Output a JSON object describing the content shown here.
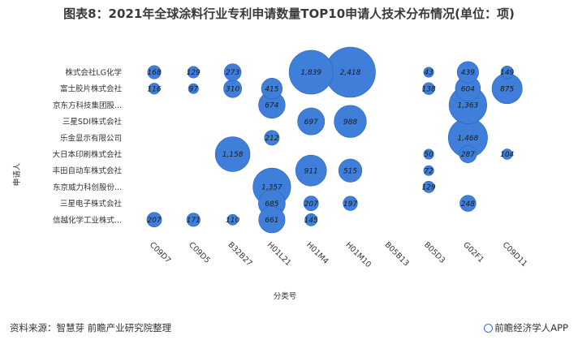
{
  "title": "图表8：2021年全球涂料行业专利申请数量TOP10申请人技术分布情况(单位：项)",
  "source": "资料来源：智慧芽 前瞻产业研究院整理",
  "brand": "前瞻经济学人APP",
  "colors": {
    "bubble": "#3f7fd9",
    "bubble_edge": "#2a64b8",
    "text": "#333333"
  },
  "chart_data": {
    "type": "bubble",
    "xlabel": "分类号",
    "ylabel": "申请人",
    "categories_x": [
      "C09D7",
      "C09D5",
      "B32B27",
      "H01L21",
      "H01M4",
      "H01M10",
      "B05B13",
      "B05D3",
      "G02F1",
      "C09D11"
    ],
    "categories_y": [
      "株式会社LG化学",
      "富士胶片株式会社",
      "京东方科技集团股...",
      "三星SDI株式会社",
      "乐金显示有限公司",
      "大日本印刷株式会社",
      "丰田自动车株式会社",
      "东京威力科创股份...",
      "三星电子株式会社",
      "信越化学工业株式..."
    ],
    "points": [
      {
        "x": "C09D7",
        "y": "株式会社LG化学",
        "value": 168,
        "label": "168"
      },
      {
        "x": "C09D5",
        "y": "株式会社LG化学",
        "value": 129,
        "label": "129"
      },
      {
        "x": "B32B27",
        "y": "株式会社LG化学",
        "value": 273,
        "label": "273"
      },
      {
        "x": "H01M4",
        "y": "株式会社LG化学",
        "value": 1839,
        "label": "1,839"
      },
      {
        "x": "H01M10",
        "y": "株式会社LG化学",
        "value": 2418,
        "label": "2,418"
      },
      {
        "x": "B05D3",
        "y": "株式会社LG化学",
        "value": 43,
        "label": "43"
      },
      {
        "x": "G02F1",
        "y": "株式会社LG化学",
        "value": 439,
        "label": "439"
      },
      {
        "x": "C09D11",
        "y": "株式会社LG化学",
        "value": 149,
        "label": "149"
      },
      {
        "x": "C09D7",
        "y": "富士胶片株式会社",
        "value": 116,
        "label": "116"
      },
      {
        "x": "C09D5",
        "y": "富士胶片株式会社",
        "value": 97,
        "label": "97"
      },
      {
        "x": "B32B27",
        "y": "富士胶片株式会社",
        "value": 310,
        "label": "310"
      },
      {
        "x": "H01L21",
        "y": "富士胶片株式会社",
        "value": 415,
        "label": "415"
      },
      {
        "x": "B05D3",
        "y": "富士胶片株式会社",
        "value": 138,
        "label": "138"
      },
      {
        "x": "G02F1",
        "y": "富士胶片株式会社",
        "value": 604,
        "label": "604"
      },
      {
        "x": "C09D11",
        "y": "富士胶片株式会社",
        "value": 875,
        "label": "875"
      },
      {
        "x": "H01L21",
        "y": "京东方科技集团股...",
        "value": 674,
        "label": "674"
      },
      {
        "x": "G02F1",
        "y": "京东方科技集团股...",
        "value": 1363,
        "label": "1,363"
      },
      {
        "x": "H01M4",
        "y": "三星SDI株式会社",
        "value": 697,
        "label": "697"
      },
      {
        "x": "H01M10",
        "y": "三星SDI株式会社",
        "value": 988,
        "label": "988"
      },
      {
        "x": "H01L21",
        "y": "乐金显示有限公司",
        "value": 212,
        "label": "212"
      },
      {
        "x": "G02F1",
        "y": "乐金显示有限公司",
        "value": 1468,
        "label": "1,468"
      },
      {
        "x": "B32B27",
        "y": "大日本印刷株式会社",
        "value": 1158,
        "label": "1,158"
      },
      {
        "x": "B05D3",
        "y": "大日本印刷株式会社",
        "value": 50,
        "label": "50"
      },
      {
        "x": "G02F1",
        "y": "大日本印刷株式会社",
        "value": 287,
        "label": "287"
      },
      {
        "x": "C09D11",
        "y": "大日本印刷株式会社",
        "value": 104,
        "label": "104"
      },
      {
        "x": "H01M4",
        "y": "丰田自动车株式会社",
        "value": 911,
        "label": "911"
      },
      {
        "x": "H01M10",
        "y": "丰田自动车株式会社",
        "value": 515,
        "label": "515"
      },
      {
        "x": "B05D3",
        "y": "丰田自动车株式会社",
        "value": 72,
        "label": "72"
      },
      {
        "x": "H01L21",
        "y": "东京威力科创股份...",
        "value": 1357,
        "label": "1,357"
      },
      {
        "x": "B05D3",
        "y": "东京威力科创股份...",
        "value": 129,
        "label": "129"
      },
      {
        "x": "H01L21",
        "y": "三星电子株式会社",
        "value": 685,
        "label": "685"
      },
      {
        "x": "H01M4",
        "y": "三星电子株式会社",
        "value": 207,
        "label": "207"
      },
      {
        "x": "H01M10",
        "y": "三星电子株式会社",
        "value": 197,
        "label": "197"
      },
      {
        "x": "G02F1",
        "y": "三星电子株式会社",
        "value": 248,
        "label": "248"
      },
      {
        "x": "C09D7",
        "y": "信越化学工业株式...",
        "value": 207,
        "label": "207"
      },
      {
        "x": "C09D5",
        "y": "信越化学工业株式...",
        "value": 171,
        "label": "171"
      },
      {
        "x": "B32B27",
        "y": "信越化学工业株式...",
        "value": 110,
        "label": "110"
      },
      {
        "x": "H01L21",
        "y": "信越化学工业株式...",
        "value": 661,
        "label": "661"
      },
      {
        "x": "H01M4",
        "y": "信越化学工业株式...",
        "value": 145,
        "label": "145"
      }
    ]
  }
}
